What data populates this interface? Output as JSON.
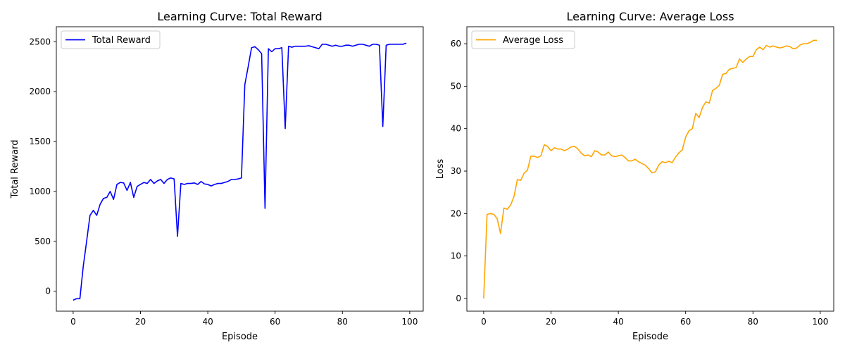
{
  "chart_data": [
    {
      "type": "line",
      "title": "Learning Curve: Total Reward",
      "xlabel": "Episode",
      "ylabel": "Total Reward",
      "xlim": [
        -5,
        104
      ],
      "ylim": [
        -200,
        2650
      ],
      "xticks": [
        0,
        20,
        40,
        60,
        80,
        100
      ],
      "yticks": [
        0,
        500,
        1000,
        1500,
        2000,
        2500
      ],
      "grid": false,
      "legend_position": "top-left",
      "series": [
        {
          "name": "Total Reward",
          "color": "#0000ff",
          "x": [
            0,
            1,
            2,
            3,
            4,
            5,
            6,
            7,
            8,
            9,
            10,
            11,
            12,
            13,
            14,
            15,
            16,
            17,
            18,
            19,
            20,
            21,
            22,
            23,
            24,
            25,
            26,
            27,
            28,
            29,
            30,
            31,
            32,
            33,
            34,
            35,
            36,
            37,
            38,
            39,
            40,
            41,
            42,
            43,
            44,
            45,
            46,
            47,
            48,
            49,
            50,
            51,
            52,
            53,
            54,
            55,
            56,
            57,
            58,
            59,
            60,
            61,
            62,
            63,
            64,
            65,
            66,
            67,
            68,
            69,
            70,
            71,
            72,
            73,
            74,
            75,
            76,
            77,
            78,
            79,
            80,
            81,
            82,
            83,
            84,
            85,
            86,
            87,
            88,
            89,
            90,
            91,
            92,
            93,
            94,
            95,
            96,
            97,
            98,
            99
          ],
          "y": [
            -90,
            -75,
            -75,
            250,
            500,
            760,
            810,
            760,
            870,
            930,
            940,
            1000,
            920,
            1070,
            1090,
            1085,
            1010,
            1090,
            940,
            1050,
            1070,
            1090,
            1080,
            1120,
            1080,
            1105,
            1120,
            1080,
            1120,
            1135,
            1125,
            550,
            1080,
            1070,
            1080,
            1080,
            1085,
            1070,
            1100,
            1075,
            1070,
            1055,
            1070,
            1080,
            1080,
            1090,
            1100,
            1120,
            1120,
            1125,
            1135,
            2070,
            2250,
            2440,
            2450,
            2420,
            2380,
            830,
            2430,
            2400,
            2430,
            2430,
            2440,
            1630,
            2455,
            2445,
            2455,
            2455,
            2455,
            2455,
            2460,
            2450,
            2440,
            2430,
            2475,
            2475,
            2465,
            2455,
            2465,
            2455,
            2455,
            2465,
            2465,
            2455,
            2465,
            2475,
            2475,
            2465,
            2455,
            2475,
            2475,
            2465,
            1650,
            2465,
            2475,
            2475,
            2475,
            2475,
            2475,
            2485
          ]
        }
      ]
    },
    {
      "type": "line",
      "title": "Learning Curve: Average Loss",
      "xlabel": "Episode",
      "ylabel": "Loss",
      "xlim": [
        -5,
        104
      ],
      "ylim": [
        -3,
        64
      ],
      "xticks": [
        0,
        20,
        40,
        60,
        80,
        100
      ],
      "yticks": [
        0,
        10,
        20,
        30,
        40,
        50,
        60
      ],
      "grid": false,
      "legend_position": "top-left",
      "series": [
        {
          "name": "Average Loss",
          "color": "#ffa500",
          "x": [
            0,
            1,
            2,
            3,
            4,
            5,
            6,
            7,
            8,
            9,
            10,
            11,
            12,
            13,
            14,
            15,
            16,
            17,
            18,
            19,
            20,
            21,
            22,
            23,
            24,
            25,
            26,
            27,
            28,
            29,
            30,
            31,
            32,
            33,
            34,
            35,
            36,
            37,
            38,
            39,
            40,
            41,
            42,
            43,
            44,
            45,
            46,
            47,
            48,
            49,
            50,
            51,
            52,
            53,
            54,
            55,
            56,
            57,
            58,
            59,
            60,
            61,
            62,
            63,
            64,
            65,
            66,
            67,
            68,
            69,
            70,
            71,
            72,
            73,
            74,
            75,
            76,
            77,
            78,
            79,
            80,
            81,
            82,
            83,
            84,
            85,
            86,
            87,
            88,
            89,
            90,
            91,
            92,
            93,
            94,
            95,
            96,
            97,
            98,
            99
          ],
          "y": [
            0,
            19.8,
            20,
            19.8,
            18.8,
            15.3,
            21.3,
            21,
            22,
            24,
            28,
            27.8,
            29.5,
            30.2,
            33.5,
            33.5,
            33.2,
            33.6,
            36.2,
            35.8,
            34.8,
            35.5,
            35.2,
            35.2,
            34.8,
            35.2,
            35.7,
            35.8,
            35.2,
            34.2,
            33.6,
            33.8,
            33.4,
            34.8,
            34.5,
            33.8,
            33.8,
            34.5,
            33.6,
            33.4,
            33.6,
            33.8,
            33.2,
            32.4,
            32.4,
            32.8,
            32.2,
            31.8,
            31.4,
            30.6,
            29.6,
            29.8,
            31.4,
            32.2,
            32.0,
            32.3,
            32.0,
            33.3,
            34.3,
            35.0,
            38.0,
            39.5,
            40.0,
            43.6,
            42.6,
            45.0,
            46.3,
            46.0,
            49.0,
            49.5,
            50.2,
            52.8,
            53.0,
            54.0,
            54.2,
            54.4,
            56.4,
            55.6,
            56.4,
            57.0,
            57.0,
            58.6,
            59.2,
            58.6,
            59.6,
            59.2,
            59.5,
            59.2,
            59.0,
            59.2,
            59.5,
            59.3,
            58.8,
            59.0,
            59.7,
            60.0,
            60.0,
            60.3,
            60.8,
            60.8
          ]
        }
      ]
    }
  ]
}
